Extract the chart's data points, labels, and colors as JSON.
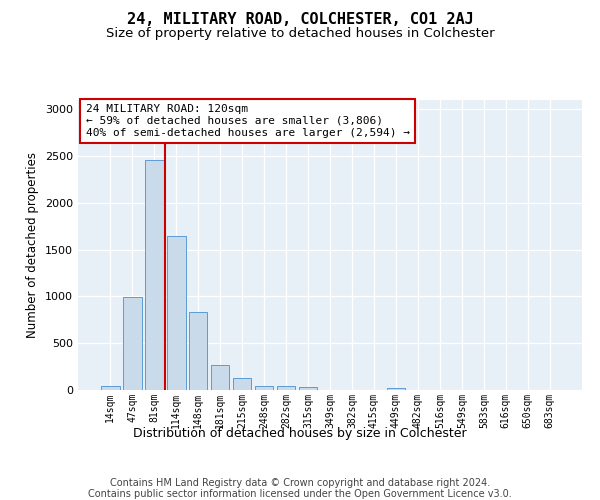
{
  "title": "24, MILITARY ROAD, COLCHESTER, CO1 2AJ",
  "subtitle": "Size of property relative to detached houses in Colchester",
  "xlabel": "Distribution of detached houses by size in Colchester",
  "ylabel": "Number of detached properties",
  "categories": [
    "14sqm",
    "47sqm",
    "81sqm",
    "114sqm",
    "148sqm",
    "181sqm",
    "215sqm",
    "248sqm",
    "282sqm",
    "315sqm",
    "349sqm",
    "382sqm",
    "415sqm",
    "449sqm",
    "482sqm",
    "516sqm",
    "549sqm",
    "583sqm",
    "616sqm",
    "650sqm",
    "683sqm"
  ],
  "values": [
    40,
    990,
    2460,
    1650,
    830,
    270,
    130,
    40,
    40,
    30,
    0,
    0,
    0,
    20,
    0,
    0,
    0,
    0,
    0,
    0,
    0
  ],
  "bar_color": "#c9daea",
  "bar_edge_color": "#5b9bd5",
  "vline_position": 2.5,
  "vline_color": "#cc0000",
  "annotation_text": "24 MILITARY ROAD: 120sqm\n← 59% of detached houses are smaller (3,806)\n40% of semi-detached houses are larger (2,594) →",
  "ylim": [
    0,
    3100
  ],
  "yticks": [
    0,
    500,
    1000,
    1500,
    2000,
    2500,
    3000
  ],
  "bg_color": "#e8f0f7",
  "footer": "Contains HM Land Registry data © Crown copyright and database right 2024.\nContains public sector information licensed under the Open Government Licence v3.0."
}
